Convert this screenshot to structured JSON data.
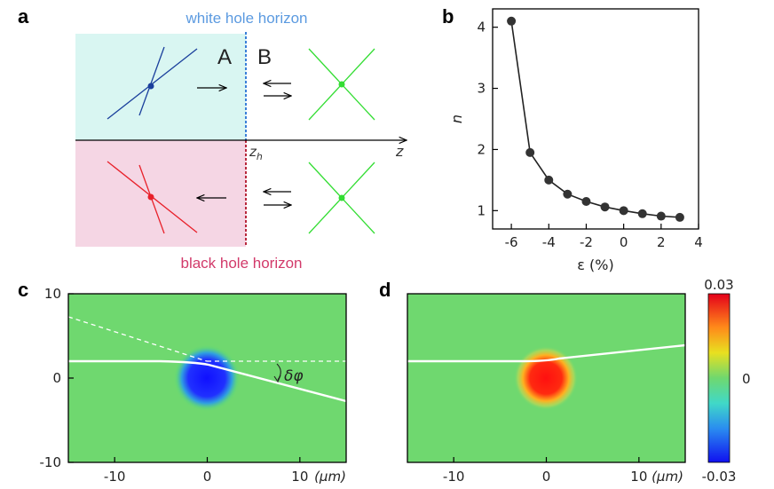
{
  "panel_a": {
    "letter": "a",
    "white_hole_label": "white hole horizon",
    "black_hole_label": "black hole horizon",
    "region_a": "A",
    "region_b": "B",
    "zh_label": "z_h",
    "z_label": "z",
    "colors": {
      "white_region": "#d9f6f2",
      "black_region": "#f5d6e4",
      "blue": "#1a3f9c",
      "red": "#e8202a",
      "green": "#33dd33",
      "blue_dash": "#3a7fd8",
      "red_dash": "#b8283c"
    }
  },
  "panel_b": {
    "letter": "b"
  },
  "panel_c": {
    "letter": "c",
    "delta_phi_label": "δφ"
  },
  "panel_d": {
    "letter": "d"
  },
  "colorbar": {
    "top_label": "0.03",
    "mid_label": "0",
    "bottom_label": "-0.03"
  },
  "chart_data": [
    {
      "id": "b",
      "type": "line",
      "x": [
        -6,
        -5,
        -4,
        -3,
        -2,
        -1,
        0,
        1,
        2,
        3
      ],
      "series": [
        {
          "values": [
            4.1,
            1.95,
            1.5,
            1.27,
            1.15,
            1.06,
            1.0,
            0.95,
            0.91,
            0.89
          ]
        }
      ],
      "xlabel": "ε (%)",
      "ylabel": "n",
      "xlim": [
        -7,
        4
      ],
      "ylim": [
        0.7,
        4.3
      ],
      "xticks": [
        "-6",
        "-4",
        "-2",
        "0",
        "2",
        "4"
      ],
      "yticks": [
        "1",
        "2",
        "3",
        "4"
      ]
    },
    {
      "id": "c",
      "type": "heatmap",
      "xlabel": "(μm)",
      "xticks": [
        "-10",
        "0",
        "10"
      ],
      "yticks": [
        "10",
        "0",
        "-10"
      ],
      "xlim": [
        -15,
        15
      ],
      "ylim": [
        -10,
        10
      ],
      "spot": {
        "x": 0,
        "y": 0,
        "sign": "negative"
      }
    },
    {
      "id": "d",
      "type": "heatmap",
      "xlabel": "(μm)",
      "xticks": [
        "-10",
        "0",
        "10"
      ],
      "xlim": [
        -15,
        15
      ],
      "ylim": [
        -10,
        10
      ],
      "spot": {
        "x": 0,
        "y": 0,
        "sign": "positive"
      }
    }
  ]
}
